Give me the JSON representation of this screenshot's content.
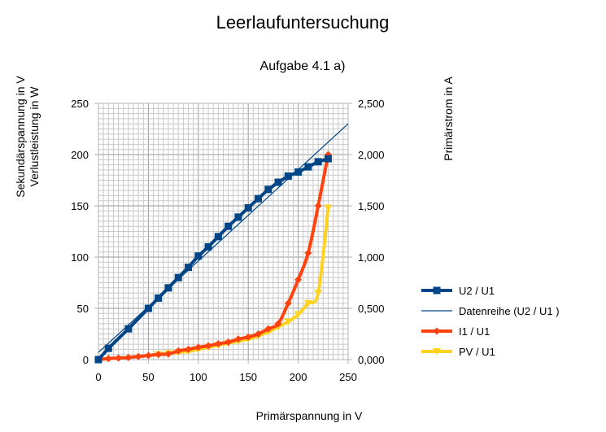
{
  "chart_data": {
    "type": "line",
    "title": "Leerlaufuntersuchung",
    "subtitle": "Aufgabe 4.1 a)",
    "xlabel": "Primärspannung in V",
    "ylabel_left_1": "Sekundärspannung in V",
    "ylabel_left_2": "Verlustleistung in W",
    "ylabel_right": "Primärstrom in A",
    "xlim": [
      0,
      250
    ],
    "ylim_left": [
      0,
      250
    ],
    "ylim_right": [
      0,
      2.5
    ],
    "x_ticks": [
      "0",
      "50",
      "100",
      "150",
      "200",
      "250"
    ],
    "y_left_ticks": [
      "0",
      "50",
      "100",
      "150",
      "200",
      "250"
    ],
    "y_right_ticks": [
      "0,000",
      "0,500",
      "1,000",
      "1,500",
      "2,000",
      "2,500"
    ],
    "grid": true,
    "legend_position": "right",
    "series": [
      {
        "name": "U2 / U1",
        "axis": "left",
        "color": "#004586",
        "marker": "square",
        "x": [
          0,
          10,
          30,
          50,
          60,
          70,
          80,
          90,
          100,
          110,
          120,
          130,
          140,
          150,
          160,
          170,
          180,
          190,
          200,
          210,
          220,
          230
        ],
        "y": [
          0,
          11,
          30,
          50,
          60,
          70,
          80,
          90,
          101,
          110,
          120,
          130,
          139,
          148,
          157,
          166,
          173,
          179,
          183,
          188,
          193,
          196
        ]
      },
      {
        "name": "Datenreihe (U2 / U1 )",
        "axis": "left",
        "color": "#004586",
        "marker": "none",
        "trendline": true,
        "x": [
          0,
          250
        ],
        "y": [
          7,
          230
        ]
      },
      {
        "name": "I1 / U1",
        "axis": "right",
        "color": "#ff420e",
        "marker": "diamond",
        "x": [
          0,
          10,
          20,
          30,
          40,
          50,
          60,
          70,
          80,
          90,
          100,
          110,
          120,
          130,
          140,
          150,
          160,
          170,
          180,
          190,
          200,
          210,
          220,
          230
        ],
        "y": [
          0.0,
          0.01,
          0.015,
          0.02,
          0.03,
          0.04,
          0.05,
          0.055,
          0.085,
          0.1,
          0.12,
          0.135,
          0.155,
          0.17,
          0.2,
          0.22,
          0.25,
          0.3,
          0.35,
          0.55,
          0.78,
          1.04,
          1.5,
          2.0
        ]
      },
      {
        "name": "PV  / U1",
        "axis": "left",
        "color": "#ffd320",
        "marker": "triangle-down",
        "x": [
          60,
          70,
          80,
          90,
          100,
          110,
          120,
          130,
          140,
          150,
          160,
          170,
          180,
          190,
          200,
          210,
          220,
          230
        ],
        "y": [
          5,
          6,
          7,
          8,
          10,
          12,
          14,
          16,
          18,
          20,
          23,
          27,
          32,
          37,
          44,
          55,
          65,
          148
        ]
      }
    ]
  }
}
